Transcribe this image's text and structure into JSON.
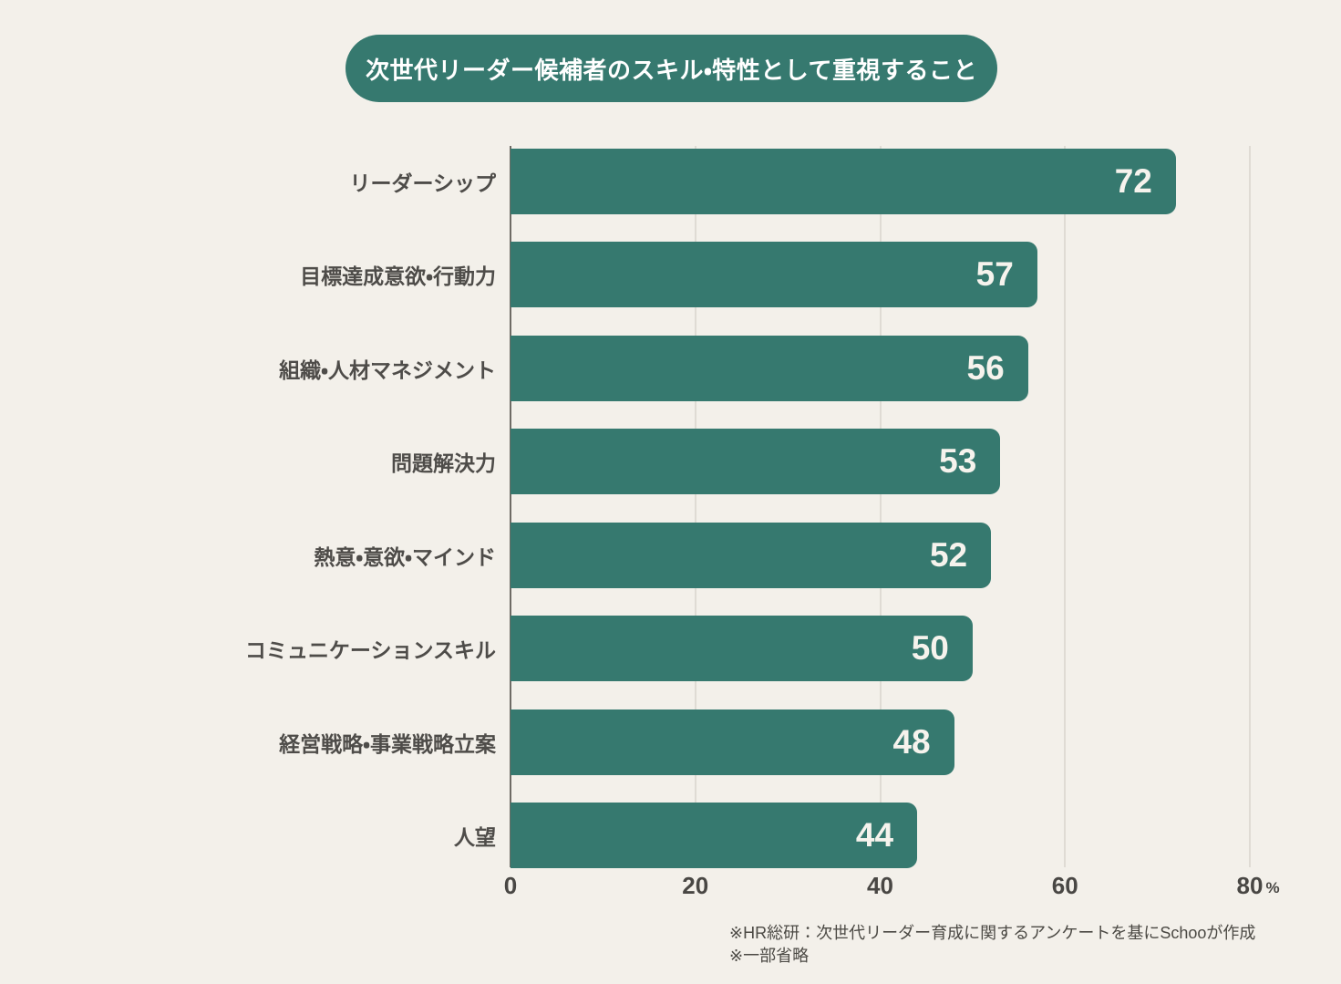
{
  "page": {
    "background": "#F3F0EA"
  },
  "chart_data": {
    "type": "bar",
    "orientation": "horizontal",
    "title": "次世代リーダー候補者のスキル・特性として重視すること",
    "categories": [
      "リーダーシップ",
      "目標達成意欲・行動力",
      "組織・人材マネジメント",
      "問題解決力",
      "熱意・意欲・マインド",
      "コミュニケーションスキル",
      "経営戦略・事業戦略立案",
      "人望"
    ],
    "values": [
      72,
      57,
      56,
      53,
      52,
      50,
      48,
      44
    ],
    "xlim": [
      0,
      80
    ],
    "xticks": [
      0,
      20,
      40,
      60,
      80
    ],
    "unit": "%",
    "grid": true,
    "legend": null,
    "bar_color": "#36796F",
    "title_bg_color": "#36796F",
    "title_text_color": "#FFFFFF",
    "value_label_color": "#F6F3ED",
    "category_label_color": "#4E4C49",
    "grid_color": "#DFDBD4",
    "axis_color": "#6E6B65",
    "source_notes": [
      "※HR総研：次世代リーダー育成に関するアンケートを基にSchooが作成",
      "※一部省略"
    ]
  }
}
